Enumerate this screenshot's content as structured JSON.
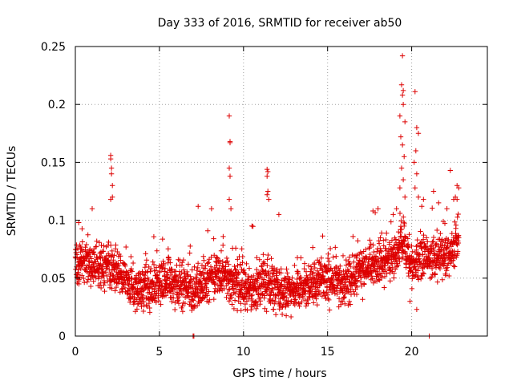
{
  "chart_data": {
    "type": "scatter",
    "title": "Day 333 of 2016, SRMTID for receiver ab50",
    "xlabel": "GPS time / hours",
    "ylabel": "SRMTID / TECUs",
    "xlim": [
      0,
      24.5
    ],
    "ylim": [
      0,
      0.25
    ],
    "xticks": [
      0,
      5,
      10,
      15,
      20
    ],
    "xtick_labels": [
      "0",
      "5",
      "10",
      "15",
      "20"
    ],
    "yticks": [
      0,
      0.05,
      0.1,
      0.15,
      0.2,
      0.25
    ],
    "ytick_labels": [
      "0",
      "0.05",
      "0.1",
      "0.15",
      "0.2",
      "0.25"
    ],
    "grid": true,
    "marker": "plus",
    "series": [
      {
        "name": "SRMTID",
        "color": "#dd0000",
        "trend": [
          [
            0.0,
            0.06
          ],
          [
            0.5,
            0.065
          ],
          [
            1.0,
            0.06
          ],
          [
            1.5,
            0.06
          ],
          [
            2.0,
            0.062
          ],
          [
            2.5,
            0.055
          ],
          [
            3.0,
            0.045
          ],
          [
            3.5,
            0.04
          ],
          [
            4.0,
            0.04
          ],
          [
            4.5,
            0.042
          ],
          [
            5.0,
            0.045
          ],
          [
            5.5,
            0.048
          ],
          [
            6.0,
            0.045
          ],
          [
            6.5,
            0.042
          ],
          [
            7.0,
            0.035
          ],
          [
            7.5,
            0.045
          ],
          [
            8.0,
            0.05
          ],
          [
            8.5,
            0.055
          ],
          [
            9.0,
            0.05
          ],
          [
            9.5,
            0.045
          ],
          [
            10.0,
            0.042
          ],
          [
            10.5,
            0.042
          ],
          [
            11.0,
            0.045
          ],
          [
            11.5,
            0.045
          ],
          [
            12.0,
            0.04
          ],
          [
            12.5,
            0.038
          ],
          [
            13.0,
            0.04
          ],
          [
            13.5,
            0.042
          ],
          [
            14.0,
            0.045
          ],
          [
            14.5,
            0.048
          ],
          [
            15.0,
            0.05
          ],
          [
            15.5,
            0.05
          ],
          [
            16.0,
            0.045
          ],
          [
            16.5,
            0.05
          ],
          [
            17.0,
            0.055
          ],
          [
            17.5,
            0.062
          ],
          [
            18.0,
            0.065
          ],
          [
            18.5,
            0.068
          ],
          [
            19.0,
            0.07
          ],
          [
            19.5,
            0.08
          ],
          [
            20.0,
            0.06
          ],
          [
            20.5,
            0.065
          ],
          [
            21.0,
            0.07
          ],
          [
            21.5,
            0.068
          ],
          [
            22.0,
            0.07
          ],
          [
            22.5,
            0.075
          ],
          [
            22.8,
            0.08
          ]
        ],
        "spread": 0.018,
        "spikes": [
          [
            2.1,
            0.156
          ],
          [
            2.1,
            0.153
          ],
          [
            2.15,
            0.145
          ],
          [
            2.15,
            0.14
          ],
          [
            2.2,
            0.13
          ],
          [
            2.2,
            0.12
          ],
          [
            2.1,
            0.118
          ],
          [
            9.15,
            0.19
          ],
          [
            9.2,
            0.168
          ],
          [
            9.2,
            0.167
          ],
          [
            9.15,
            0.145
          ],
          [
            9.2,
            0.138
          ],
          [
            9.15,
            0.118
          ],
          [
            9.25,
            0.11
          ],
          [
            11.4,
            0.144
          ],
          [
            11.45,
            0.142
          ],
          [
            11.4,
            0.138
          ],
          [
            11.45,
            0.125
          ],
          [
            11.4,
            0.122
          ],
          [
            11.5,
            0.118
          ],
          [
            19.45,
            0.242
          ],
          [
            19.4,
            0.217
          ],
          [
            19.5,
            0.212
          ],
          [
            19.45,
            0.208
          ],
          [
            19.5,
            0.2
          ],
          [
            19.3,
            0.19
          ],
          [
            19.6,
            0.185
          ],
          [
            19.35,
            0.172
          ],
          [
            19.45,
            0.165
          ],
          [
            19.55,
            0.155
          ],
          [
            19.4,
            0.145
          ],
          [
            19.5,
            0.135
          ],
          [
            19.3,
            0.128
          ],
          [
            19.6,
            0.12
          ],
          [
            19.1,
            0.11
          ],
          [
            18.9,
            0.105
          ],
          [
            20.2,
            0.211
          ],
          [
            20.3,
            0.18
          ],
          [
            20.4,
            0.175
          ],
          [
            20.25,
            0.16
          ],
          [
            20.15,
            0.15
          ],
          [
            20.3,
            0.14
          ],
          [
            20.2,
            0.128
          ],
          [
            20.4,
            0.12
          ],
          [
            20.6,
            0.112
          ],
          [
            20.7,
            0.118
          ],
          [
            21.3,
            0.125
          ],
          [
            21.6,
            0.115
          ],
          [
            22.1,
            0.11
          ],
          [
            22.3,
            0.143
          ],
          [
            22.5,
            0.118
          ],
          [
            22.6,
            0.12
          ],
          [
            22.7,
            0.13
          ],
          [
            22.8,
            0.128
          ],
          [
            22.7,
            0.118
          ],
          [
            0.2,
            0.098
          ],
          [
            1.0,
            0.11
          ],
          [
            7.3,
            0.112
          ],
          [
            8.1,
            0.11
          ],
          [
            10.5,
            0.095
          ],
          [
            12.1,
            0.105
          ],
          [
            18.0,
            0.11
          ],
          [
            17.7,
            0.108
          ],
          [
            20.3,
            0.023
          ],
          [
            19.9,
            0.03
          ],
          [
            7.0,
            0.0
          ],
          [
            7.05,
            0.0
          ],
          [
            21.05,
            0.0
          ]
        ]
      }
    ]
  }
}
